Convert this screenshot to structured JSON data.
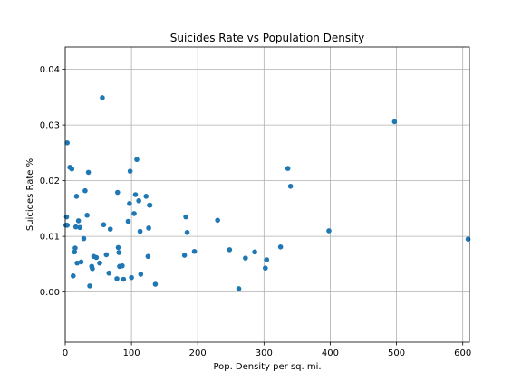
{
  "chart_data": {
    "type": "scatter",
    "title": "Suicides Rate vs Population Density",
    "xlabel": "Pop. Density per sq. mi.",
    "ylabel": "Suicides Rate %",
    "xlim": [
      0,
      610
    ],
    "ylim": [
      -0.009,
      0.044
    ],
    "xticks": [
      0,
      100,
      200,
      300,
      400,
      500,
      600
    ],
    "xtick_labels": [
      "0",
      "100",
      "200",
      "300",
      "400",
      "500",
      "600"
    ],
    "yticks": [
      0.0,
      0.01,
      0.02,
      0.03,
      0.04
    ],
    "ytick_labels": [
      "0.00",
      "0.01",
      "0.02",
      "0.03",
      "0.04"
    ],
    "grid": true,
    "color": "#1f77b4",
    "x": [
      3,
      2,
      3,
      1,
      7,
      10,
      12,
      14,
      15,
      17,
      16,
      18,
      20,
      22,
      24,
      28,
      30,
      33,
      35,
      37,
      40,
      41,
      43,
      47,
      52,
      56,
      58,
      62,
      66,
      68,
      78,
      79,
      80,
      81,
      82,
      86,
      88,
      95,
      97,
      98,
      100,
      104,
      106,
      108,
      111,
      114,
      113,
      122,
      125,
      126,
      127,
      128,
      136,
      180,
      182,
      184,
      195,
      230,
      248,
      262,
      272,
      286,
      302,
      304,
      325,
      336,
      340,
      398,
      497,
      608
    ],
    "y": [
      0.0268,
      0.0135,
      0.012,
      0.012,
      0.0224,
      0.0221,
      0.0029,
      0.0072,
      0.0079,
      0.0172,
      0.0117,
      0.0052,
      0.0128,
      0.0116,
      0.0054,
      0.0096,
      0.0182,
      0.0138,
      0.0215,
      0.0011,
      0.0046,
      0.0042,
      0.0064,
      0.0062,
      0.0052,
      0.0349,
      0.0121,
      0.0067,
      0.0034,
      0.0113,
      0.0024,
      0.0179,
      0.008,
      0.0071,
      0.0046,
      0.0047,
      0.0023,
      0.0127,
      0.0159,
      0.0217,
      0.0026,
      0.0141,
      0.0175,
      0.0238,
      0.0164,
      0.0032,
      0.0109,
      0.0172,
      0.0064,
      0.0115,
      0.0156,
      0.0156,
      0.0014,
      0.0066,
      0.0135,
      0.0107,
      0.0073,
      0.0129,
      0.0076,
      0.0006,
      0.0061,
      0.0072,
      0.0043,
      0.0058,
      0.0081,
      0.0222,
      0.019,
      0.011,
      0.0306,
      0.0095
    ]
  }
}
